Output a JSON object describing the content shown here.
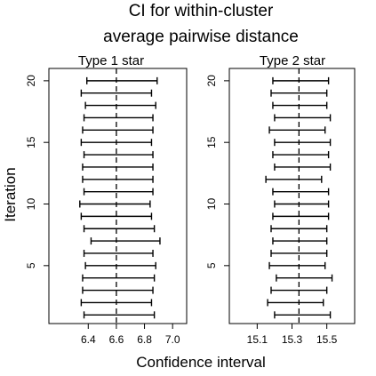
{
  "chart_data": {
    "type": "errorbar",
    "title_lines": [
      "CI for within-cluster",
      "average pairwise distance"
    ],
    "xlabel": "Confidence interval",
    "ylabel": "Iteration",
    "grid": false,
    "orientation": "horizontal",
    "panels": [
      {
        "name": "Type 1 star",
        "xlim": [
          6.12,
          7.1
        ],
        "ylim": [
          0.3,
          21.0
        ],
        "xticks": [
          6.4,
          6.6,
          6.8,
          7.0
        ],
        "xtick_labels": [
          "6.4",
          "6.6",
          "6.8",
          "7.0"
        ],
        "yticks": [
          5,
          10,
          15,
          20
        ],
        "ytick_labels": [
          "5",
          "10",
          "15",
          "20"
        ],
        "reference_x": 6.6,
        "intervals": [
          {
            "iteration": 1,
            "lower": 6.37,
            "upper": 6.87
          },
          {
            "iteration": 2,
            "lower": 6.35,
            "upper": 6.85
          },
          {
            "iteration": 3,
            "lower": 6.36,
            "upper": 6.86
          },
          {
            "iteration": 4,
            "lower": 6.36,
            "upper": 6.87
          },
          {
            "iteration": 5,
            "lower": 6.38,
            "upper": 6.88
          },
          {
            "iteration": 6,
            "lower": 6.37,
            "upper": 6.86
          },
          {
            "iteration": 7,
            "lower": 6.42,
            "upper": 6.91
          },
          {
            "iteration": 8,
            "lower": 6.37,
            "upper": 6.87
          },
          {
            "iteration": 9,
            "lower": 6.35,
            "upper": 6.85
          },
          {
            "iteration": 10,
            "lower": 6.34,
            "upper": 6.84
          },
          {
            "iteration": 11,
            "lower": 6.37,
            "upper": 6.86
          },
          {
            "iteration": 12,
            "lower": 6.36,
            "upper": 6.86
          },
          {
            "iteration": 13,
            "lower": 6.36,
            "upper": 6.86
          },
          {
            "iteration": 14,
            "lower": 6.37,
            "upper": 6.86
          },
          {
            "iteration": 15,
            "lower": 6.35,
            "upper": 6.85
          },
          {
            "iteration": 16,
            "lower": 6.36,
            "upper": 6.86
          },
          {
            "iteration": 17,
            "lower": 6.37,
            "upper": 6.86
          },
          {
            "iteration": 18,
            "lower": 6.38,
            "upper": 6.88
          },
          {
            "iteration": 19,
            "lower": 6.35,
            "upper": 6.85
          },
          {
            "iteration": 20,
            "lower": 6.39,
            "upper": 6.89
          }
        ]
      },
      {
        "name": "Type 2 star",
        "xlim": [
          14.94,
          15.66
        ],
        "ylim": [
          0.3,
          21.0
        ],
        "xticks": [
          15.1,
          15.3,
          15.5
        ],
        "xtick_labels": [
          "15.1",
          "15.3",
          "15.5"
        ],
        "yticks": [
          5,
          10,
          15,
          20
        ],
        "ytick_labels": [
          "5",
          "10",
          "15",
          "20"
        ],
        "reference_x": 15.34,
        "intervals": [
          {
            "iteration": 1,
            "lower": 15.2,
            "upper": 15.52
          },
          {
            "iteration": 2,
            "lower": 15.16,
            "upper": 15.48
          },
          {
            "iteration": 3,
            "lower": 15.18,
            "upper": 15.5
          },
          {
            "iteration": 4,
            "lower": 15.21,
            "upper": 15.53
          },
          {
            "iteration": 5,
            "lower": 15.17,
            "upper": 15.49
          },
          {
            "iteration": 6,
            "lower": 15.18,
            "upper": 15.5
          },
          {
            "iteration": 7,
            "lower": 15.19,
            "upper": 15.5
          },
          {
            "iteration": 8,
            "lower": 15.18,
            "upper": 15.5
          },
          {
            "iteration": 9,
            "lower": 15.19,
            "upper": 15.51
          },
          {
            "iteration": 10,
            "lower": 15.2,
            "upper": 15.51
          },
          {
            "iteration": 11,
            "lower": 15.19,
            "upper": 15.51
          },
          {
            "iteration": 12,
            "lower": 15.15,
            "upper": 15.47
          },
          {
            "iteration": 13,
            "lower": 15.2,
            "upper": 15.52
          },
          {
            "iteration": 14,
            "lower": 15.19,
            "upper": 15.51
          },
          {
            "iteration": 15,
            "lower": 15.2,
            "upper": 15.52
          },
          {
            "iteration": 16,
            "lower": 15.17,
            "upper": 15.49
          },
          {
            "iteration": 17,
            "lower": 15.2,
            "upper": 15.52
          },
          {
            "iteration": 18,
            "lower": 15.19,
            "upper": 15.5
          },
          {
            "iteration": 19,
            "lower": 15.18,
            "upper": 15.5
          },
          {
            "iteration": 20,
            "lower": 15.19,
            "upper": 15.51
          }
        ]
      }
    ]
  }
}
